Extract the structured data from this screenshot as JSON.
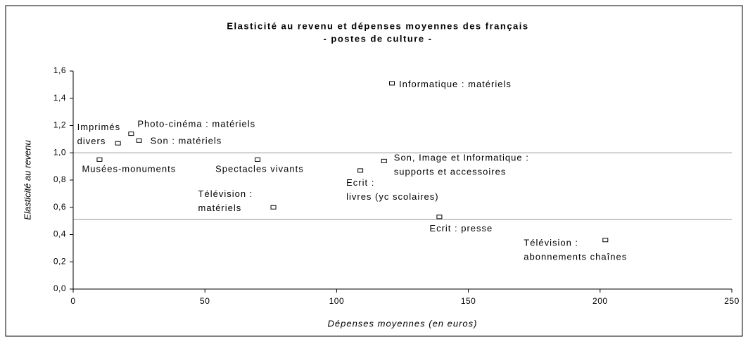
{
  "chart_data": {
    "type": "scatter",
    "title": "Elasticité au revenu et dépenses moyennes des français",
    "subtitle": "- postes de culture -",
    "x_label": "Dépenses moyennes (en euros)",
    "y_label": "Elasticité au revenu",
    "x": [
      121,
      22,
      17,
      25,
      10,
      70,
      118,
      109,
      76,
      139,
      202
    ],
    "values": [
      1.51,
      1.14,
      1.07,
      1.09,
      0.95,
      0.95,
      0.94,
      0.87,
      0.6,
      0.53,
      0.36
    ],
    "point_labels": [
      [
        "Informatique : matériels"
      ],
      [
        "Photo-cinéma : matériels"
      ],
      [
        "Imprimés",
        "divers"
      ],
      [
        "Son : matériels"
      ],
      [
        "Musées-monuments"
      ],
      [
        "Spectacles vivants"
      ],
      [
        "Son, Image et Informatique :",
        "supports et accessoires"
      ],
      [
        "Ecrit :",
        "livres (yc scolaires)"
      ],
      [
        "Télévision :",
        "matériels"
      ],
      [
        "Ecrit : presse"
      ],
      [
        "Télévision :",
        "abonnements chaînes"
      ]
    ],
    "xlim": [
      0,
      250
    ],
    "xticks": [
      0,
      50,
      100,
      150,
      200,
      250
    ],
    "ylim": [
      0,
      1.6
    ],
    "yticks": [
      {
        "value": 0,
        "label": "0,0"
      },
      {
        "value": 0.2,
        "label": "0,2"
      },
      {
        "value": 0.4,
        "label": "0,4"
      },
      {
        "value": 0.6,
        "label": "0,6"
      },
      {
        "value": 0.8,
        "label": "0,8"
      },
      {
        "value": 1.0,
        "label": "1,0"
      },
      {
        "value": 1.2,
        "label": "1,2"
      },
      {
        "value": 1.4,
        "label": "1,4"
      },
      {
        "value": 1.6,
        "label": "1,6"
      }
    ],
    "hlines": [
      1.0,
      0.51
    ],
    "color": "#000000"
  }
}
